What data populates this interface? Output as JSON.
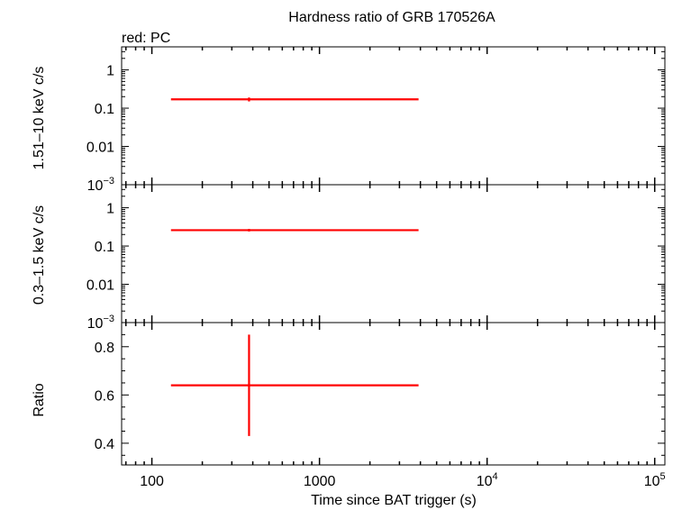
{
  "chart_data": {
    "type": "scatter",
    "title": "Hardness ratio of GRB 170526A",
    "subtitle": "red: PC",
    "xlabel": "Time since BAT trigger (s)",
    "x_scale": "log",
    "xlim": [
      66,
      115000
    ],
    "x_ticks": [
      {
        "value": 100,
        "label": "100",
        "sup": ""
      },
      {
        "value": 1000,
        "label": "1000",
        "sup": ""
      },
      {
        "value": 10000,
        "label": "10",
        "sup": "4"
      },
      {
        "value": 100000,
        "label": "10",
        "sup": "5"
      }
    ],
    "colors": {
      "PC": "#ff0000",
      "axis": "#000000"
    },
    "panels": [
      {
        "id": "hard",
        "ylabel": "1.51–10 keV c/s",
        "y_scale": "log",
        "ylim": [
          0.001,
          4
        ],
        "y_ticks": [
          {
            "value": 1,
            "label": "1",
            "sup": ""
          },
          {
            "value": 0.1,
            "label": "0.1",
            "sup": ""
          },
          {
            "value": 0.01,
            "label": "0.01",
            "sup": ""
          },
          {
            "value": 0.001,
            "label": "10",
            "sup": "−3"
          }
        ],
        "series": [
          {
            "mode": "PC",
            "points": [
              {
                "x": 380,
                "xlo": 130,
                "xhi": 3900,
                "y": 0.17,
                "ylo": 0.15,
                "yhi": 0.19
              }
            ]
          }
        ]
      },
      {
        "id": "soft",
        "ylabel": "0.3–1.5 keV c/s",
        "y_scale": "log",
        "ylim": [
          0.001,
          4
        ],
        "y_ticks": [
          {
            "value": 1,
            "label": "1",
            "sup": ""
          },
          {
            "value": 0.1,
            "label": "0.1",
            "sup": ""
          },
          {
            "value": 0.01,
            "label": "0.01",
            "sup": ""
          },
          {
            "value": 0.001,
            "label": "10",
            "sup": "−3"
          }
        ],
        "series": [
          {
            "mode": "PC",
            "points": [
              {
                "x": 380,
                "xlo": 130,
                "xhi": 3900,
                "y": 0.26,
                "ylo": 0.24,
                "yhi": 0.28
              }
            ]
          }
        ]
      },
      {
        "id": "ratio",
        "ylabel": "Ratio",
        "y_scale": "linear",
        "ylim": [
          0.31,
          0.9
        ],
        "y_ticks": [
          {
            "value": 0.8,
            "label": "0.8",
            "sup": ""
          },
          {
            "value": 0.6,
            "label": "0.6",
            "sup": ""
          },
          {
            "value": 0.4,
            "label": "0.4",
            "sup": ""
          }
        ],
        "series": [
          {
            "mode": "PC",
            "points": [
              {
                "x": 380,
                "xlo": 130,
                "xhi": 3900,
                "y": 0.64,
                "ylo": 0.43,
                "yhi": 0.85
              }
            ]
          }
        ]
      }
    ]
  }
}
